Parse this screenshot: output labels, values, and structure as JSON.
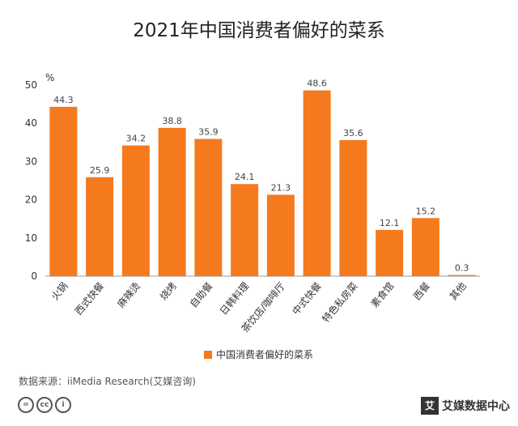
{
  "chart_data": {
    "type": "bar",
    "title": "2021年中国消费者偏好的菜系",
    "ylabel": "%",
    "ylim": [
      0,
      50
    ],
    "yticks": [
      0,
      10,
      20,
      30,
      40,
      50
    ],
    "categories": [
      "火锅",
      "西式快餐",
      "麻辣烫",
      "烧烤",
      "自助餐",
      "日韩料理",
      "茶饮店/咖啡厅",
      "中式快餐",
      "特色私房菜",
      "素食馆",
      "西餐",
      "其他"
    ],
    "series": [
      {
        "name": "中国消费者偏好的菜系",
        "values": [
          44.3,
          25.9,
          34.2,
          38.8,
          35.9,
          24.1,
          21.3,
          48.6,
          35.6,
          12.1,
          15.2,
          0.3
        ]
      }
    ],
    "legend_position": "bottom",
    "grid": false,
    "color": "#f57a1e"
  },
  "source": "数据来源：iiMedia Research(艾媒咨询)",
  "license_icons": [
    "=",
    "cc",
    "i"
  ],
  "brand": {
    "mark": "艾",
    "name": "艾媒数据中心"
  }
}
